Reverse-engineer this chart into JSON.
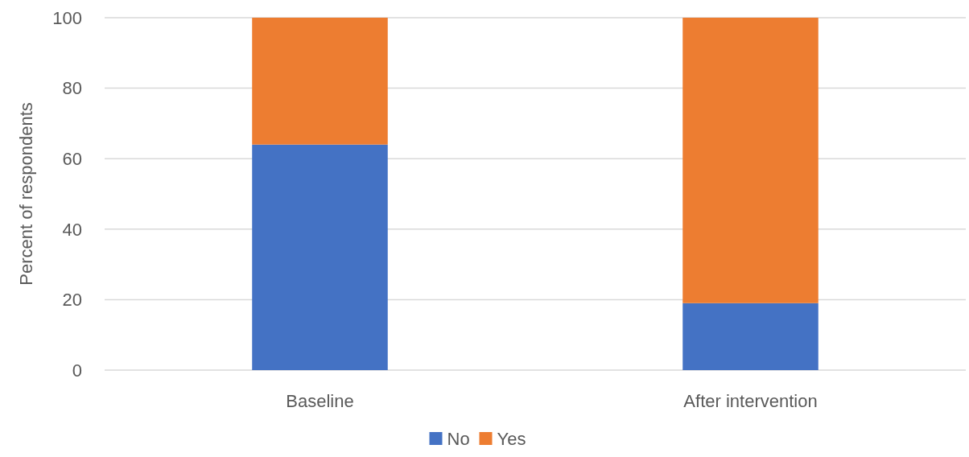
{
  "chart_data": {
    "type": "bar",
    "stacked": true,
    "ylabel": "Percent of respondents",
    "categories": [
      "Baseline",
      "After intervention"
    ],
    "series": [
      {
        "name": "No",
        "color": "#4472c4",
        "values": [
          64,
          19
        ]
      },
      {
        "name": "Yes",
        "color": "#ed7d31",
        "values": [
          36,
          81
        ]
      }
    ],
    "ylim": [
      0,
      100
    ],
    "yticks": [
      0,
      20,
      40,
      60,
      80,
      100
    ],
    "grid": "y",
    "legend": "bottom"
  }
}
